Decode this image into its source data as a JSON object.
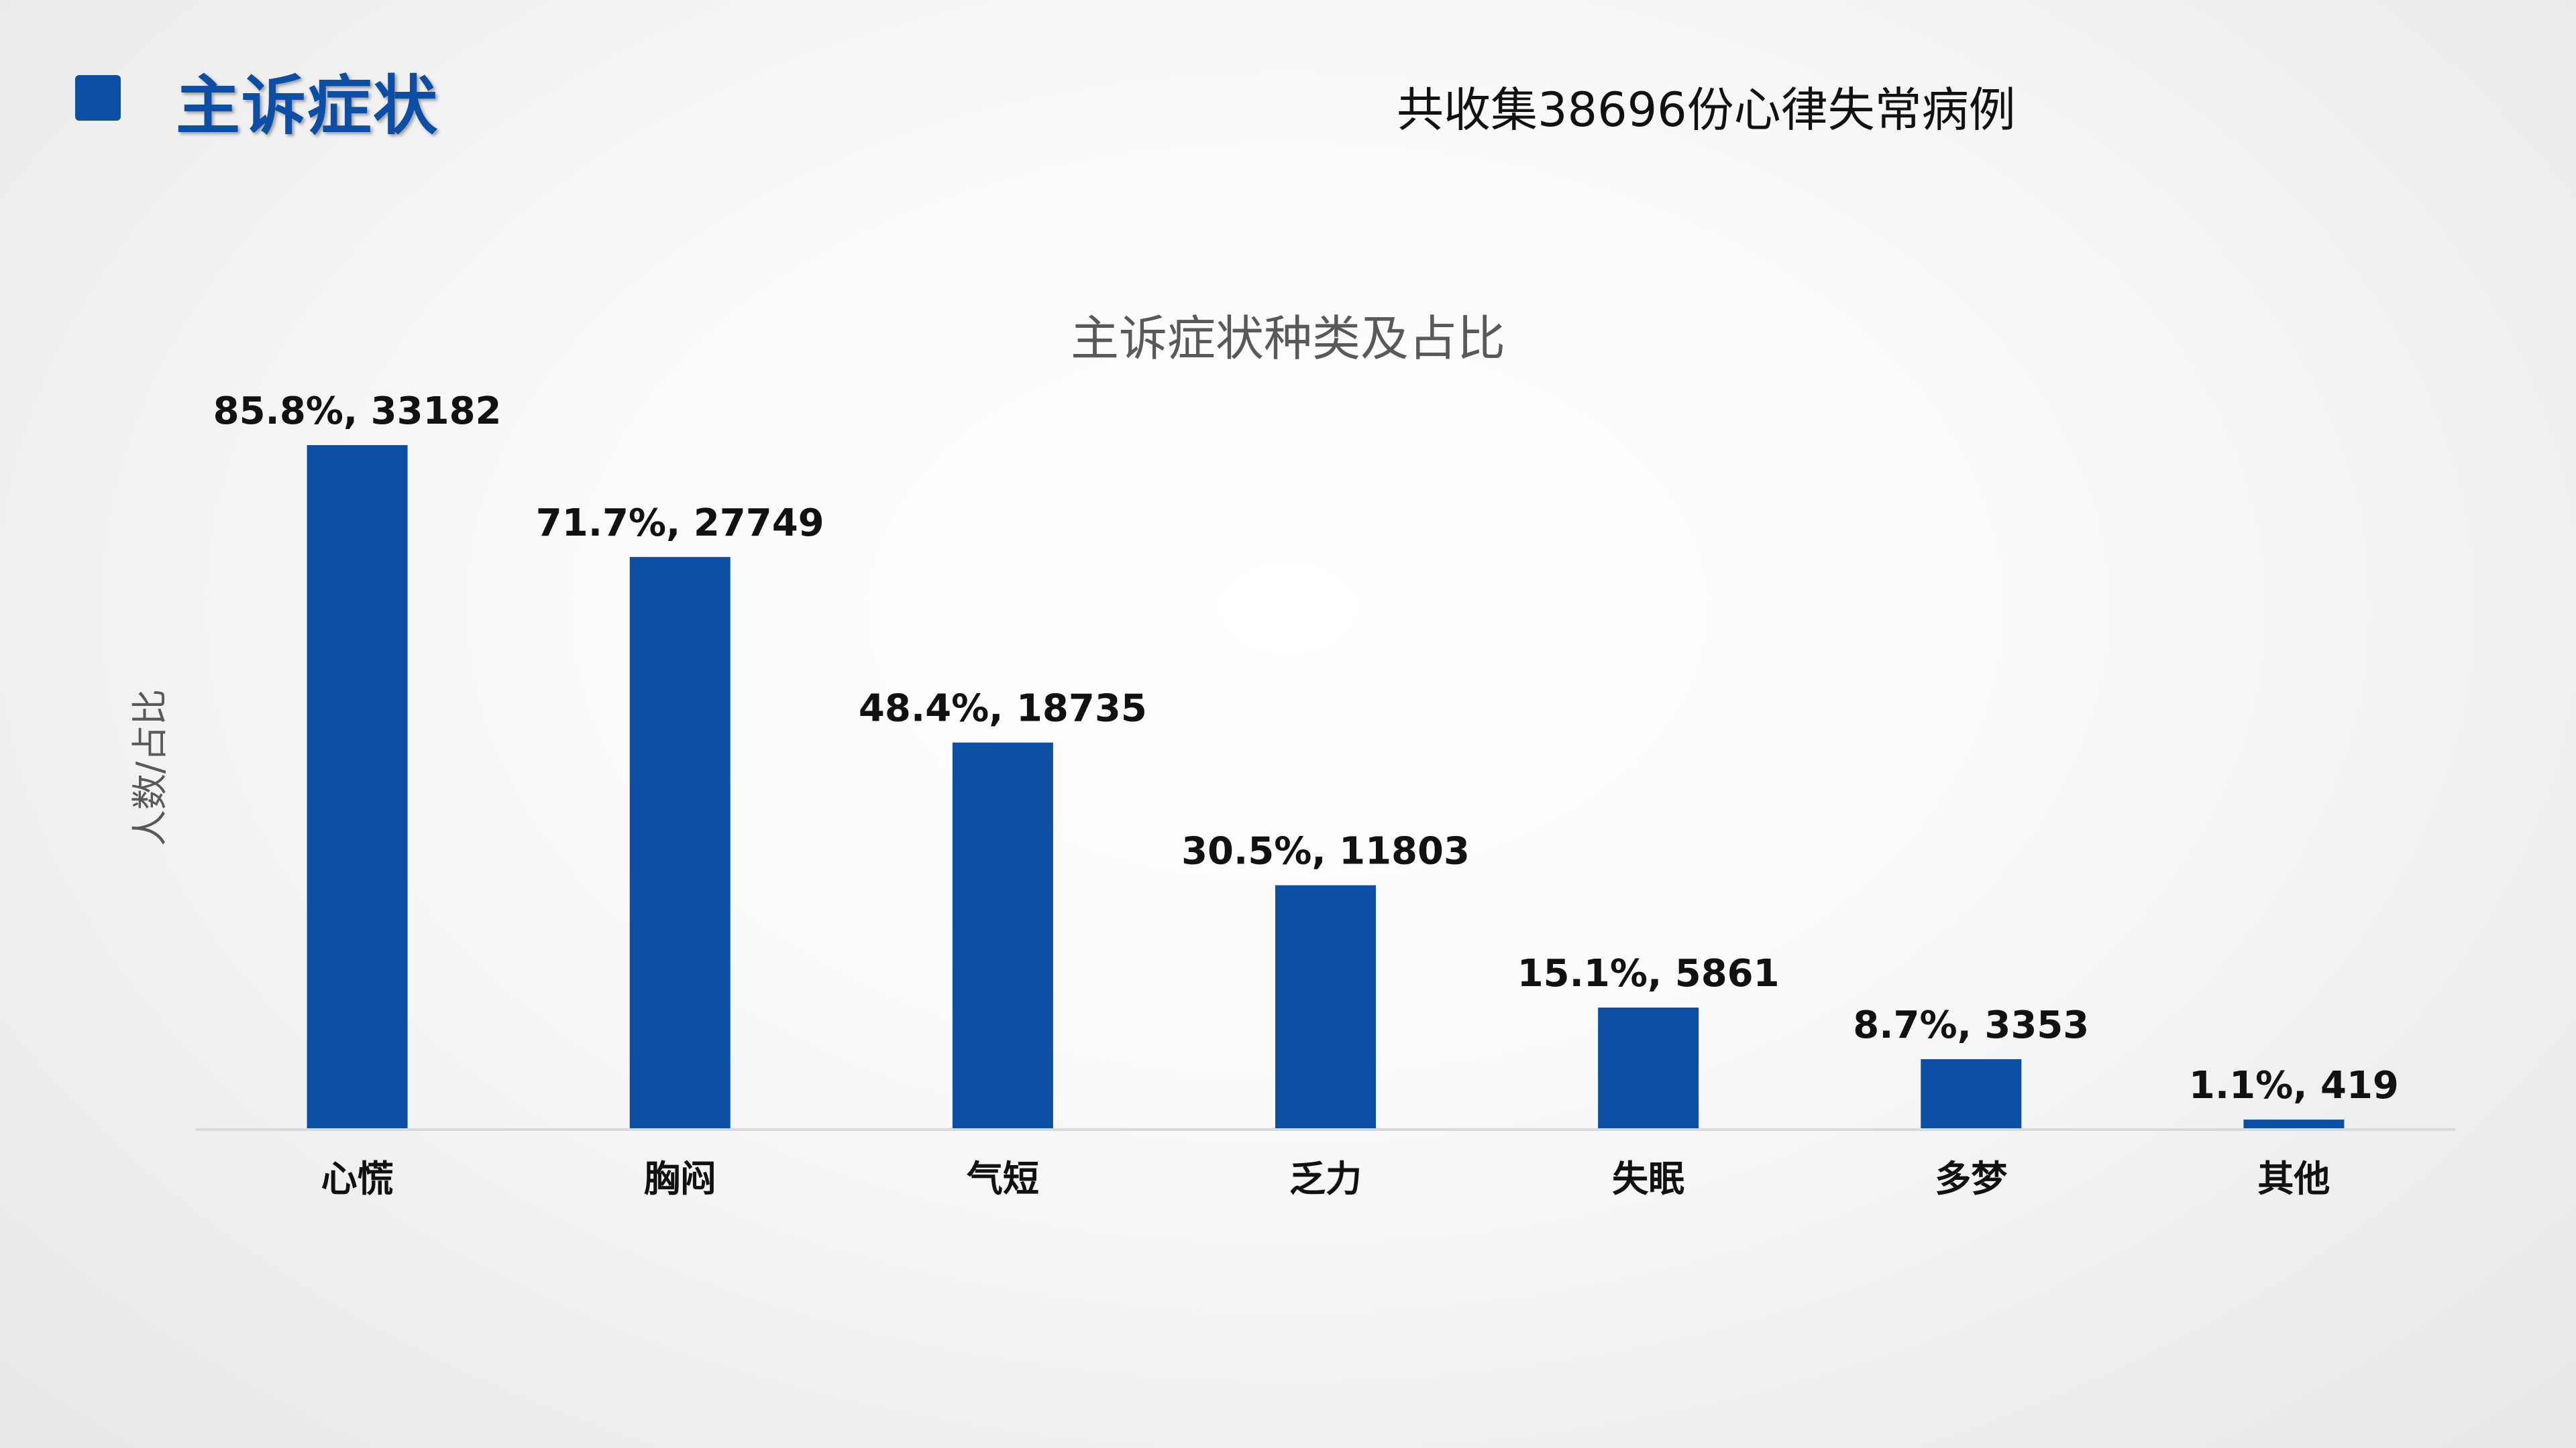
{
  "heading": {
    "title": "主诉症状",
    "subtitle": "共收集38696份心律失常病例"
  },
  "chart_data": {
    "type": "bar",
    "title": "主诉症状种类及占比",
    "ylabel": "人数/占比",
    "xlabel": "",
    "ylim": [
      0,
      35000
    ],
    "categories": [
      "心慌",
      "胸闷",
      "气短",
      "乏力",
      "失眠",
      "多梦",
      "其他"
    ],
    "values": [
      33182,
      27749,
      18735,
      11803,
      5861,
      3353,
      419
    ],
    "percentages": [
      "85.8%",
      "71.7%",
      "48.4%",
      "30.5%",
      "15.1%",
      "8.7%",
      "1.1%"
    ],
    "data_labels": [
      "85.8%, 33182",
      "71.7%, 27749",
      "48.4%, 18735",
      "30.5%, 11803",
      "15.1%, 5861",
      "8.7%, 3353",
      "1.1%, 419"
    ],
    "colors": {
      "bar": "#0a4ea5",
      "axis": "#d9d9d9",
      "title": "#595959"
    },
    "grid": false,
    "legend": "none"
  }
}
